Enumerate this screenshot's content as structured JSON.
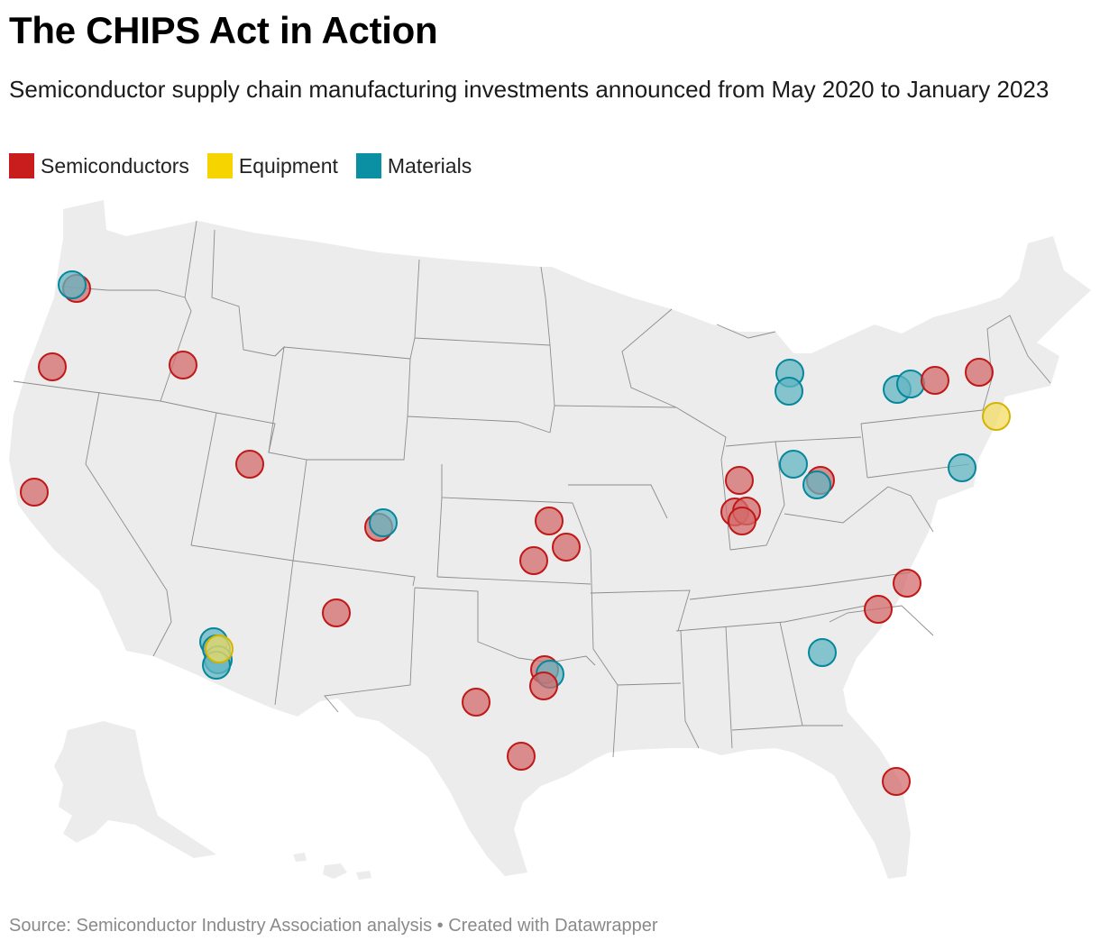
{
  "title": "The CHIPS Act in Action",
  "subtitle": "Semiconductor supply chain manufacturing investments announced from May 2020 to January 2023",
  "legend": [
    {
      "label": "Semiconductors",
      "color": "#c91c1c"
    },
    {
      "label": "Equipment",
      "color": "#f5d400"
    },
    {
      "label": "Materials",
      "color": "#0a8fa3"
    }
  ],
  "source": "Source: Semiconductor Industry Association analysis • Created with Datawrapper",
  "colors": {
    "land": "#ececec",
    "border": "#8c8c8c",
    "semiconductors_fill": "#d46b6b",
    "semiconductors_stroke": "#c01818",
    "equipment_fill": "#f3dc63",
    "equipment_stroke": "#d4b400",
    "materials_fill": "#63b6c3",
    "materials_stroke": "#07879b"
  },
  "investments": [
    {
      "category": "Semiconductors",
      "location": "Portland, OR"
    },
    {
      "category": "Materials",
      "location": "Portland, OR"
    },
    {
      "category": "Semiconductors",
      "location": "Northern CA"
    },
    {
      "category": "Semiconductors",
      "location": "Boise, ID"
    },
    {
      "category": "Semiconductors",
      "location": "Bay Area, CA"
    },
    {
      "category": "Semiconductors",
      "location": "Salt Lake area, UT"
    },
    {
      "category": "Semiconductors",
      "location": "Colorado Springs, CO"
    },
    {
      "category": "Materials",
      "location": "Colorado Springs, CO"
    },
    {
      "category": "Semiconductors",
      "location": "Albuquerque, NM"
    },
    {
      "category": "Materials",
      "location": "Phoenix, AZ"
    },
    {
      "category": "Materials",
      "location": "Phoenix, AZ"
    },
    {
      "category": "Materials",
      "location": "Phoenix, AZ"
    },
    {
      "category": "Materials",
      "location": "Phoenix, AZ"
    },
    {
      "category": "Equipment",
      "location": "Phoenix, AZ"
    },
    {
      "category": "Semiconductors",
      "location": "Kansas"
    },
    {
      "category": "Semiconductors",
      "location": "Kansas"
    },
    {
      "category": "Semiconductors",
      "location": "Kansas"
    },
    {
      "category": "Semiconductors",
      "location": "Dallas area, TX"
    },
    {
      "category": "Materials",
      "location": "Dallas area, TX"
    },
    {
      "category": "Semiconductors",
      "location": "Dallas area, TX"
    },
    {
      "category": "Semiconductors",
      "location": "West Texas"
    },
    {
      "category": "Semiconductors",
      "location": "Austin, TX"
    },
    {
      "category": "Semiconductors",
      "location": "Illinois"
    },
    {
      "category": "Semiconductors",
      "location": "Illinois"
    },
    {
      "category": "Semiconductors",
      "location": "Illinois"
    },
    {
      "category": "Semiconductors",
      "location": "Illinois"
    },
    {
      "category": "Materials",
      "location": "Michigan"
    },
    {
      "category": "Materials",
      "location": "Michigan"
    },
    {
      "category": "Materials",
      "location": "Ohio"
    },
    {
      "category": "Semiconductors",
      "location": "Columbus, OH"
    },
    {
      "category": "Materials",
      "location": "Columbus, OH"
    },
    {
      "category": "Materials",
      "location": "Western NY"
    },
    {
      "category": "Materials",
      "location": "Western NY"
    },
    {
      "category": "Semiconductors",
      "location": "Central NY"
    },
    {
      "category": "Semiconductors",
      "location": "Upstate NY"
    },
    {
      "category": "Equipment",
      "location": "New York area"
    },
    {
      "category": "Materials",
      "location": "Delaware"
    },
    {
      "category": "Semiconductors",
      "location": "North Carolina"
    },
    {
      "category": "Semiconductors",
      "location": "South Carolina"
    },
    {
      "category": "Materials",
      "location": "Georgia"
    },
    {
      "category": "Semiconductors",
      "location": "Florida"
    }
  ]
}
